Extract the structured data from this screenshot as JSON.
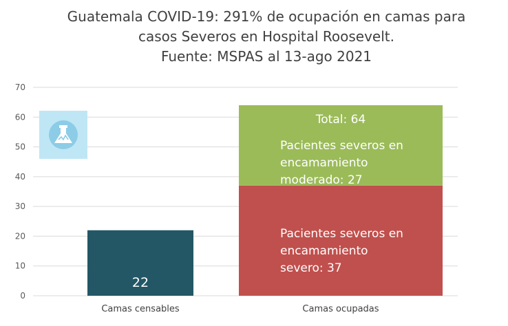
{
  "title_lines": [
    "Guatemala COVID-19: 291% de ocupación en camas para",
    "casos Severos en Hospital Roosevelt.",
    "Fuente: MSPAS al 13-ago 2021"
  ],
  "colors": {
    "camas_censables": "#235766",
    "severo": "#c0504d",
    "moderado": "#9bbb59",
    "grid": "#d9d9d9",
    "logo_bg": "#bfe6f5"
  },
  "icon": {
    "name": "flask-icon"
  },
  "chart_data": {
    "type": "bar",
    "stacked": true,
    "title": "Guatemala COVID-19: 291% de ocupación en camas para casos Severos en Hospital Roosevelt. Fuente: MSPAS al 13-ago 2021",
    "categories": [
      "Camas censables",
      "Camas ocupadas"
    ],
    "series": [
      {
        "name": "Camas censables",
        "values": [
          22,
          0
        ]
      },
      {
        "name": "Pacientes severos en encamamiento severo",
        "values": [
          0,
          37
        ]
      },
      {
        "name": "Pacientes severos en encamamiento moderado",
        "values": [
          0,
          27
        ]
      }
    ],
    "ylim": [
      0,
      70
    ],
    "yticks": [
      "0",
      "10",
      "20",
      "30",
      "40",
      "50",
      "60",
      "70"
    ],
    "data_labels": {
      "censables": "22",
      "total": "Total: 64",
      "severo": [
        "Pacientes severos en",
        "encamamiento",
        "severo: 37"
      ],
      "moderado": [
        "Pacientes severos en",
        "encamamiento",
        "moderado: 27"
      ]
    },
    "grid": true,
    "xlabel": "",
    "ylabel": ""
  }
}
